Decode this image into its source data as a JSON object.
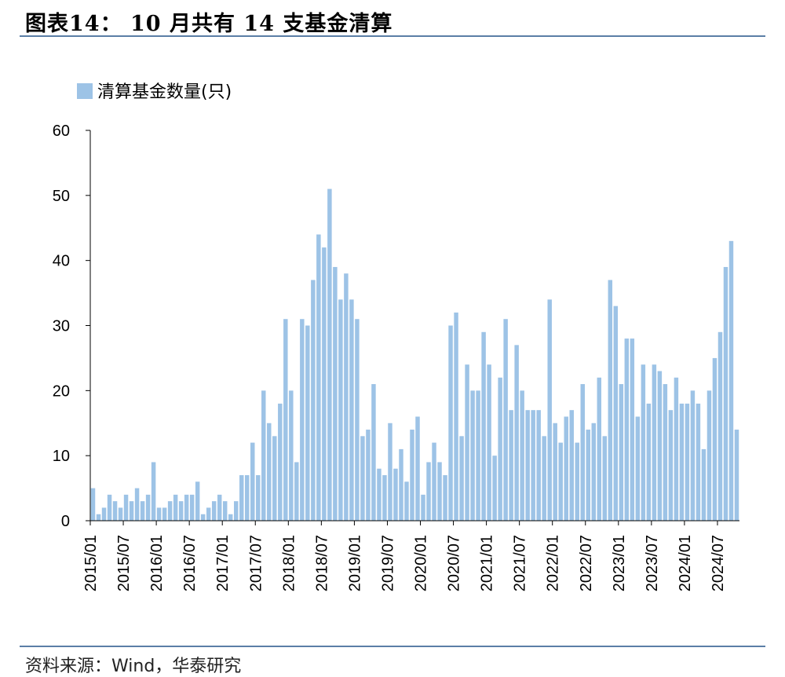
{
  "header": {
    "title": "图表14：  10 月共有 14 支基金清算"
  },
  "footer": {
    "source": "资料来源：Wind，华泰研究"
  },
  "colors": {
    "bar": "#9dc3e6",
    "rule": "#5b7ea6",
    "axis": "#000000"
  },
  "chart_data": {
    "type": "bar",
    "title": "图表14：  10 月共有 14 支基金清算",
    "legend": {
      "position": "top-left"
    },
    "ylim": [
      0,
      60
    ],
    "yticks": [
      0,
      10,
      20,
      30,
      40,
      50,
      60
    ],
    "xtick_labels": [
      "2015/01",
      "2015/07",
      "2016/01",
      "2016/07",
      "2017/01",
      "2017/07",
      "2018/01",
      "2018/07",
      "2019/01",
      "2019/07",
      "2020/01",
      "2020/07",
      "2021/01",
      "2021/07",
      "2022/01",
      "2022/07",
      "2023/01",
      "2023/07",
      "2024/01",
      "2024/07"
    ],
    "categories": [
      "2015/01",
      "2015/02",
      "2015/03",
      "2015/04",
      "2015/05",
      "2015/06",
      "2015/07",
      "2015/08",
      "2015/09",
      "2015/10",
      "2015/11",
      "2015/12",
      "2016/01",
      "2016/02",
      "2016/03",
      "2016/04",
      "2016/05",
      "2016/06",
      "2016/07",
      "2016/08",
      "2016/09",
      "2016/10",
      "2016/11",
      "2016/12",
      "2017/01",
      "2017/02",
      "2017/03",
      "2017/04",
      "2017/05",
      "2017/06",
      "2017/07",
      "2017/08",
      "2017/09",
      "2017/10",
      "2017/11",
      "2017/12",
      "2018/01",
      "2018/02",
      "2018/03",
      "2018/04",
      "2018/05",
      "2018/06",
      "2018/07",
      "2018/08",
      "2018/09",
      "2018/10",
      "2018/11",
      "2018/12",
      "2019/01",
      "2019/02",
      "2019/03",
      "2019/04",
      "2019/05",
      "2019/06",
      "2019/07",
      "2019/08",
      "2019/09",
      "2019/10",
      "2019/11",
      "2019/12",
      "2020/01",
      "2020/02",
      "2020/03",
      "2020/04",
      "2020/05",
      "2020/06",
      "2020/07",
      "2020/08",
      "2020/09",
      "2020/10",
      "2020/11",
      "2020/12",
      "2021/01",
      "2021/02",
      "2021/03",
      "2021/04",
      "2021/05",
      "2021/06",
      "2021/07",
      "2021/08",
      "2021/09",
      "2021/10",
      "2021/11",
      "2021/12",
      "2022/01",
      "2022/02",
      "2022/03",
      "2022/04",
      "2022/05",
      "2022/06",
      "2022/07",
      "2022/08",
      "2022/09",
      "2022/10",
      "2022/11",
      "2022/12",
      "2023/01",
      "2023/02",
      "2023/03",
      "2023/04",
      "2023/05",
      "2023/06",
      "2023/07",
      "2023/08",
      "2023/09",
      "2023/10",
      "2023/11",
      "2023/12",
      "2024/01",
      "2024/02",
      "2024/03",
      "2024/04",
      "2024/05",
      "2024/06",
      "2024/07",
      "2024/08",
      "2024/09",
      "2024/10"
    ],
    "series": [
      {
        "name": "清算基金数量(只)",
        "values": [
          5,
          1,
          2,
          4,
          3,
          2,
          4,
          3,
          5,
          3,
          4,
          9,
          2,
          2,
          3,
          4,
          3,
          4,
          4,
          6,
          1,
          2,
          3,
          4,
          3,
          1,
          3,
          7,
          7,
          12,
          7,
          20,
          15,
          13,
          18,
          31,
          20,
          9,
          31,
          30,
          37,
          44,
          42,
          51,
          39,
          34,
          38,
          34,
          31,
          13,
          14,
          21,
          8,
          7,
          15,
          8,
          11,
          6,
          14,
          16,
          4,
          9,
          12,
          9,
          7,
          30,
          32,
          13,
          24,
          20,
          20,
          29,
          24,
          10,
          22,
          31,
          17,
          27,
          20,
          17,
          17,
          17,
          13,
          34,
          15,
          12,
          16,
          17,
          12,
          21,
          14,
          15,
          22,
          13,
          37,
          33,
          21,
          28,
          28,
          16,
          24,
          18,
          24,
          23,
          21,
          17,
          22,
          18,
          18,
          20,
          18,
          11,
          20,
          25,
          29,
          39,
          43,
          14
        ]
      }
    ]
  }
}
